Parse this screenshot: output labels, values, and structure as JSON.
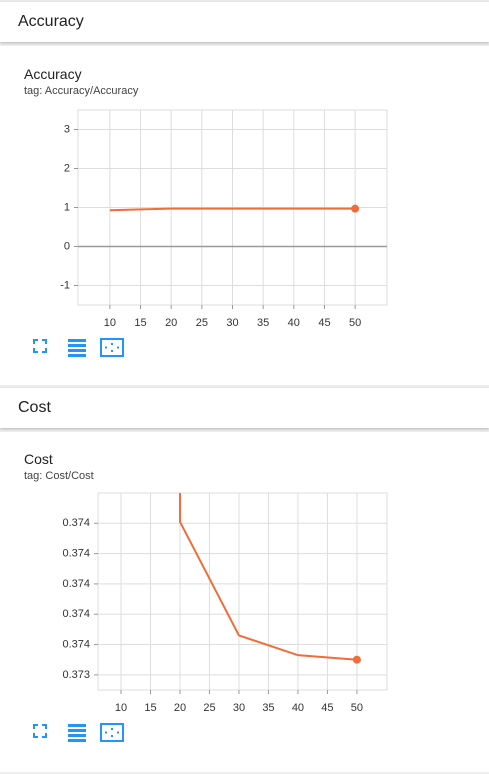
{
  "sections": [
    {
      "title": "Accuracy"
    },
    {
      "title": "Cost"
    }
  ],
  "chart_data": [
    {
      "type": "line",
      "title": "Accuracy",
      "subtitle": "tag: Accuracy/Accuracy",
      "x": [
        10,
        20,
        30,
        40,
        50
      ],
      "series": [
        {
          "name": "Accuracy",
          "color": "#f26b3a",
          "values": [
            0.93,
            0.97,
            0.97,
            0.97,
            0.97
          ]
        }
      ],
      "xlim": [
        4.8,
        55.2
      ],
      "xticks": [
        10,
        15,
        20,
        25,
        30,
        35,
        40,
        45,
        50
      ],
      "ylim": [
        -1.5,
        3.5
      ],
      "yticks": [
        -1,
        0,
        1,
        2,
        3
      ],
      "grid": true
    },
    {
      "type": "line",
      "title": "Cost",
      "subtitle": "tag: Cost/Cost",
      "x": [
        20,
        20,
        30,
        40,
        50
      ],
      "series": [
        {
          "name": "Cost",
          "color": "#f26b3a",
          "values": [
            0.3746,
            0.37441,
            0.37366,
            0.37353,
            0.3735
          ]
        }
      ],
      "xlim": [
        6.1,
        55.1
      ],
      "xticks": [
        10,
        15,
        20,
        25,
        30,
        35,
        40,
        45,
        50
      ],
      "ylim": [
        0.3733,
        0.3746
      ],
      "yticks": [
        {
          "value": 0.3734,
          "label": "0.373"
        },
        {
          "value": 0.3736,
          "label": "0.374"
        },
        {
          "value": 0.3738,
          "label": "0.374"
        },
        {
          "value": 0.374,
          "label": "0.374"
        },
        {
          "value": 0.3742,
          "label": "0.374"
        },
        {
          "value": 0.3744,
          "label": "0.374"
        }
      ],
      "grid": true
    }
  ]
}
